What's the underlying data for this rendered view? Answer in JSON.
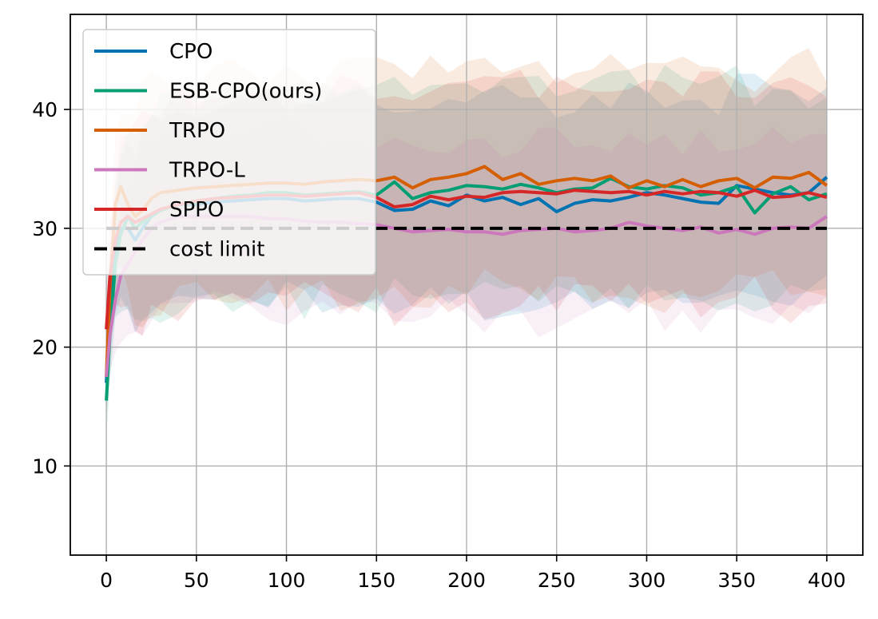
{
  "chart_data": {
    "type": "line",
    "title": "",
    "xlabel": "",
    "ylabel": "",
    "xlim": [
      -20,
      420
    ],
    "ylim": [
      2.5,
      48
    ],
    "xticks": [
      0,
      50,
      100,
      150,
      200,
      250,
      300,
      350,
      400
    ],
    "yticks": [
      10,
      20,
      30,
      40
    ],
    "grid": true,
    "legend_position": "upper-left",
    "cost_limit": {
      "name": "cost limit",
      "value": 30,
      "color": "#000000",
      "style": "dashed"
    },
    "x": [
      0,
      2,
      5,
      8,
      12,
      16,
      20,
      25,
      30,
      40,
      50,
      60,
      70,
      80,
      90,
      100,
      110,
      120,
      130,
      140,
      150,
      160,
      170,
      180,
      190,
      200,
      210,
      220,
      230,
      240,
      250,
      260,
      270,
      280,
      290,
      300,
      310,
      320,
      330,
      340,
      350,
      360,
      370,
      380,
      390,
      400
    ],
    "series": [
      {
        "name": "CPO",
        "color": "#0173b2",
        "band": 8.5,
        "values": [
          17,
          23,
          28,
          30,
          30,
          29,
          30,
          31,
          31.5,
          32,
          32,
          32.2,
          32.3,
          32.4,
          32.5,
          32.5,
          32.3,
          32.4,
          32.5,
          32.5,
          32.2,
          31.5,
          31.6,
          32.3,
          31.9,
          32.8,
          32.3,
          32.6,
          32.0,
          32.5,
          31.4,
          32.1,
          32.4,
          32.3,
          32.6,
          33.0,
          32.8,
          32.5,
          32.2,
          32.1,
          33.6,
          33.3,
          33.0,
          32.8,
          33.0,
          34.3
        ]
      },
      {
        "name": "ESB-CPO(ours)",
        "color": "#029e73",
        "band": 9.0,
        "values": [
          15.5,
          21,
          27,
          29.5,
          31,
          30,
          30.5,
          31,
          31.5,
          32,
          32.2,
          32.5,
          32.7,
          32.8,
          33.0,
          33.0,
          32.8,
          32.9,
          33.0,
          33.1,
          32.8,
          33.9,
          32.5,
          33.0,
          33.2,
          33.6,
          33.5,
          33.3,
          33.7,
          33.4,
          33.0,
          33.3,
          33.4,
          34.2,
          33.5,
          33.3,
          33.6,
          33.4,
          32.8,
          33.0,
          33.5,
          31.3,
          32.9,
          33.5,
          32.4,
          32.9
        ]
      },
      {
        "name": "TRPO",
        "color": "#d55e00",
        "band": 9.5,
        "values": [
          17.5,
          25,
          32,
          33.5,
          32,
          31,
          31.5,
          32.5,
          33,
          33.2,
          33.4,
          33.5,
          33.6,
          33.7,
          33.8,
          33.8,
          33.7,
          33.9,
          34.0,
          34.1,
          34.0,
          34.3,
          33.4,
          34.1,
          34.3,
          34.6,
          35.2,
          34.1,
          34.6,
          33.7,
          34.0,
          34.2,
          34.0,
          34.4,
          33.4,
          34.0,
          33.5,
          34.1,
          33.5,
          34.0,
          34.2,
          33.4,
          34.3,
          34.2,
          34.7,
          33.6
        ]
      },
      {
        "name": "TRPO-L",
        "color": "#cc78bc",
        "band": 7.5,
        "values": [
          17.5,
          21,
          24,
          26,
          27,
          28,
          29,
          30,
          30.5,
          31,
          31,
          31,
          31,
          31,
          30.8,
          30.8,
          30.6,
          30.5,
          30.5,
          30.4,
          30.3,
          30.0,
          29.7,
          29.8,
          29.9,
          29.7,
          29.7,
          29.5,
          29.8,
          29.9,
          30.0,
          29.7,
          29.8,
          30.0,
          30.5,
          30.2,
          30.0,
          29.8,
          30.1,
          29.6,
          29.9,
          29.5,
          30.0,
          30.1,
          30.0,
          31.0
        ]
      },
      {
        "name": "SPPO",
        "color": "#d62728",
        "band": 9.0,
        "values": [
          21.5,
          26,
          29,
          30.5,
          31,
          30.5,
          30.8,
          31.2,
          31.6,
          32,
          32.3,
          32.5,
          32.6,
          32.7,
          32.8,
          32.8,
          32.7,
          32.8,
          32.9,
          33.0,
          32.6,
          31.8,
          32.0,
          32.7,
          32.4,
          32.7,
          32.6,
          33.0,
          33.1,
          33.0,
          32.9,
          33.2,
          33.1,
          33.0,
          33.1,
          32.8,
          33.1,
          32.9,
          33.1,
          33.0,
          32.7,
          33.2,
          32.6,
          32.7,
          33.0,
          32.6
        ]
      }
    ]
  }
}
